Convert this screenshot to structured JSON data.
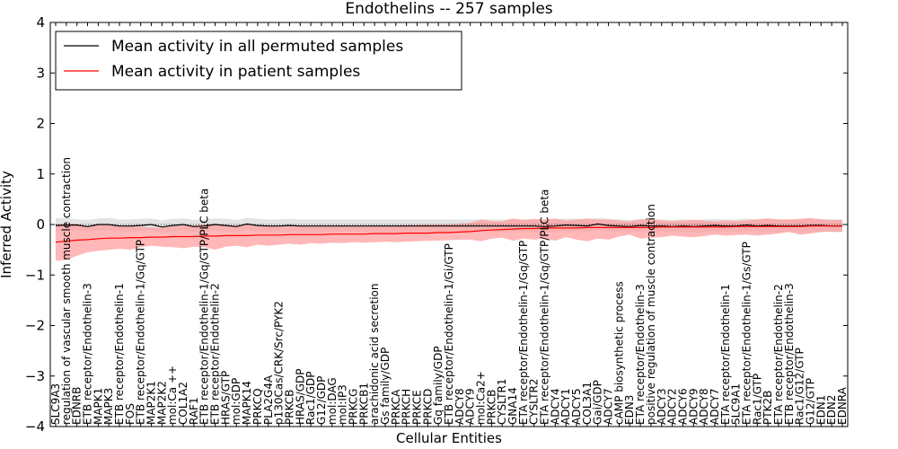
{
  "chart_data": {
    "type": "line",
    "title": "Endothelins -- 257 samples",
    "xlabel": "Cellular Entities",
    "ylabel": "Inferred Activity",
    "ylim": [
      -4,
      4
    ],
    "yticks": [
      -4,
      -3,
      -2,
      -1,
      0,
      1,
      2,
      3,
      4
    ],
    "yticklabels": [
      "−4",
      "−3",
      "−2",
      "−1",
      "0",
      "1",
      "2",
      "3",
      "4"
    ],
    "legend_position": "top-left",
    "categories": [
      "SLC9A3",
      "regulation of vascular smooth muscle contraction",
      "EDNRB",
      "ETB receptor/Endothelin-3",
      "MAPK1",
      "MAPK3",
      "ETB receptor/Endothelin-1",
      "FOS",
      "ETB receptor/Endothelin-1/Gq/GTP",
      "MAP2K1",
      "MAP2K2",
      "mol:Ca ++",
      "COL1A2",
      "RAF1",
      "ETB receptor/Endothelin-1/Gq/GTP/PLC beta",
      "ETB receptor/Endothelin-2",
      "HRAS/GTP",
      "mol:GDP",
      "MAPK14",
      "PRKCQ",
      "PLA2G4A",
      "p130Cas/CRK/Src/PYK2",
      "PRKCB",
      "HRAS/GDP",
      "Rac1/GDP",
      "G12/GDP",
      "mol:DAG",
      "mol:IP3",
      "PRKCG",
      "PRKCB1",
      "arachidonic acid secretion",
      "Gs family/GDP",
      "PRKCA",
      "PRKCH",
      "PRKCE",
      "PRKCD",
      "Gq family/GDP",
      "ETB receptor/Endothelin-1/Gi/GTP",
      "ADCY8",
      "ADCY9",
      "mol:Ca2+",
      "PRKCB",
      "CYSLTR1",
      "GNA14",
      "ETA receptor/Endothelin-1/Gq/GTP",
      "CYSLTR2",
      "ETA receptor/Endothelin-1/Gq/GTP/PLC beta",
      "ADCY4",
      "ADCY1",
      "ADCY5",
      "COL3A1",
      "Gai/GDP",
      "ADCY7",
      "cAMP biosynthetic process",
      "EDN3",
      "ETA receptor/Endothelin-3",
      "positive regulation of muscle contraction",
      "ADCY3",
      "ADCY2",
      "ADCY6",
      "ADCY9",
      "ADCY8",
      "ADCY7",
      "ETA receptor/Endothelin-1",
      "SLC9A1",
      "ETA receptor/Endothelin-1/Gs/GTP",
      "Rac1/GTP",
      "PTK2B",
      "ETA receptor/Endothelin-2",
      "ETB receptor/Endothelin-3",
      "Rac1/G12/GTP",
      "G12/GTP",
      "EDN1",
      "EDN2",
      "EDNRA"
    ],
    "series": [
      {
        "name": "Mean activity in all permuted samples",
        "color": "#000000",
        "band_color": "#d0d0d0",
        "values": [
          -0.02,
          -0.01,
          -0.01,
          -0.04,
          0.0,
          0.0,
          -0.03,
          -0.03,
          -0.02,
          0.0,
          -0.05,
          -0.02,
          0.0,
          -0.04,
          -0.03,
          0.0,
          -0.02,
          -0.04,
          0.01,
          -0.02,
          -0.03,
          -0.03,
          -0.02,
          -0.03,
          -0.03,
          -0.03,
          -0.03,
          -0.03,
          -0.03,
          -0.03,
          -0.03,
          -0.03,
          -0.03,
          -0.03,
          -0.03,
          -0.03,
          -0.03,
          -0.03,
          -0.03,
          -0.03,
          -0.03,
          -0.03,
          -0.03,
          -0.03,
          -0.03,
          -0.03,
          -0.04,
          -0.03,
          -0.01,
          -0.02,
          -0.03,
          0.01,
          -0.02,
          -0.03,
          -0.04,
          -0.02,
          -0.03,
          -0.03,
          -0.04,
          -0.03,
          -0.04,
          -0.03,
          -0.02,
          -0.03,
          -0.03,
          -0.01,
          -0.03,
          -0.02,
          -0.03,
          -0.03,
          -0.03,
          -0.02,
          -0.02,
          -0.03,
          -0.03
        ],
        "band_lower": [
          -0.14,
          -0.13,
          -0.12,
          -0.14,
          -0.12,
          -0.12,
          -0.15,
          -0.15,
          -0.14,
          -0.12,
          -0.17,
          -0.14,
          -0.12,
          -0.16,
          -0.15,
          -0.12,
          -0.14,
          -0.16,
          -0.11,
          -0.14,
          -0.15,
          -0.15,
          -0.14,
          -0.15,
          -0.15,
          -0.15,
          -0.15,
          -0.15,
          -0.15,
          -0.15,
          -0.15,
          -0.15,
          -0.15,
          -0.15,
          -0.15,
          -0.15,
          -0.15,
          -0.15,
          -0.15,
          -0.15,
          -0.15,
          -0.15,
          -0.15,
          -0.15,
          -0.15,
          -0.15,
          -0.16,
          -0.15,
          -0.13,
          -0.14,
          -0.15,
          -0.11,
          -0.14,
          -0.15,
          -0.16,
          -0.14,
          -0.15,
          -0.15,
          -0.16,
          -0.15,
          -0.16,
          -0.15,
          -0.14,
          -0.15,
          -0.15,
          -0.13,
          -0.15,
          -0.14,
          -0.15,
          -0.15,
          -0.15,
          -0.14,
          -0.14,
          -0.15,
          -0.15
        ],
        "band_upper": [
          0.13,
          0.13,
          0.1,
          0.09,
          0.12,
          0.13,
          0.1,
          0.1,
          0.11,
          0.12,
          0.08,
          0.11,
          0.12,
          0.09,
          0.1,
          0.12,
          0.11,
          0.09,
          0.13,
          0.11,
          0.1,
          0.1,
          0.11,
          0.1,
          0.1,
          0.1,
          0.1,
          0.1,
          0.1,
          0.1,
          0.1,
          0.1,
          0.1,
          0.1,
          0.1,
          0.1,
          0.1,
          0.1,
          0.1,
          0.1,
          0.1,
          0.1,
          0.1,
          0.1,
          0.1,
          0.1,
          0.09,
          0.1,
          0.12,
          0.11,
          0.1,
          0.13,
          0.11,
          0.1,
          0.09,
          0.11,
          0.1,
          0.1,
          0.09,
          0.1,
          0.09,
          0.1,
          0.11,
          0.1,
          0.1,
          0.12,
          0.1,
          0.11,
          0.1,
          0.1,
          0.1,
          0.11,
          0.11,
          0.1,
          0.1
        ]
      },
      {
        "name": "Mean activity in patient samples",
        "color": "#ff0000",
        "band_color": "#ff9999",
        "values": [
          -0.35,
          -0.33,
          -0.31,
          -0.3,
          -0.28,
          -0.27,
          -0.27,
          -0.26,
          -0.26,
          -0.25,
          -0.25,
          -0.24,
          -0.24,
          -0.24,
          -0.23,
          -0.23,
          -0.22,
          -0.22,
          -0.22,
          -0.21,
          -0.21,
          -0.21,
          -0.2,
          -0.2,
          -0.2,
          -0.2,
          -0.19,
          -0.19,
          -0.19,
          -0.19,
          -0.18,
          -0.18,
          -0.18,
          -0.17,
          -0.17,
          -0.17,
          -0.16,
          -0.16,
          -0.15,
          -0.14,
          -0.12,
          -0.11,
          -0.1,
          -0.09,
          -0.08,
          -0.08,
          -0.07,
          -0.07,
          -0.07,
          -0.07,
          -0.06,
          -0.06,
          -0.06,
          -0.06,
          -0.06,
          -0.06,
          -0.06,
          -0.05,
          -0.05,
          -0.05,
          -0.05,
          -0.05,
          -0.05,
          -0.05,
          -0.04,
          -0.04,
          -0.04,
          -0.04,
          -0.04,
          -0.04,
          -0.04,
          -0.03,
          -0.03,
          -0.03,
          -0.03
        ],
        "band_lower": [
          -0.72,
          -0.7,
          -0.62,
          -0.55,
          -0.52,
          -0.5,
          -0.48,
          -0.5,
          -0.45,
          -0.42,
          -0.44,
          -0.45,
          -0.47,
          -0.44,
          -0.45,
          -0.5,
          -0.44,
          -0.42,
          -0.45,
          -0.4,
          -0.42,
          -0.4,
          -0.38,
          -0.4,
          -0.37,
          -0.38,
          -0.36,
          -0.37,
          -0.35,
          -0.36,
          -0.35,
          -0.34,
          -0.35,
          -0.34,
          -0.33,
          -0.32,
          -0.32,
          -0.31,
          -0.3,
          -0.3,
          -0.33,
          -0.28,
          -0.26,
          -0.32,
          -0.28,
          -0.3,
          -0.28,
          -0.32,
          -0.25,
          -0.3,
          -0.33,
          -0.28,
          -0.3,
          -0.24,
          -0.2,
          -0.28,
          -0.26,
          -0.25,
          -0.22,
          -0.24,
          -0.25,
          -0.23,
          -0.2,
          -0.22,
          -0.21,
          -0.2,
          -0.22,
          -0.2,
          -0.18,
          -0.15,
          -0.2,
          -0.18,
          -0.15,
          -0.14,
          -0.15
        ],
        "band_upper": [
          0.0,
          0.02,
          0.01,
          -0.03,
          0.01,
          -0.01,
          -0.03,
          -0.02,
          -0.05,
          -0.06,
          -0.07,
          -0.04,
          -0.01,
          -0.02,
          0.0,
          0.02,
          -0.02,
          -0.02,
          0.0,
          -0.03,
          -0.02,
          -0.03,
          -0.04,
          -0.02,
          -0.04,
          -0.03,
          -0.03,
          -0.02,
          -0.03,
          -0.03,
          -0.02,
          -0.02,
          -0.02,
          -0.01,
          -0.01,
          0.0,
          0.0,
          0.0,
          0.02,
          0.03,
          0.1,
          0.07,
          0.06,
          0.12,
          0.09,
          0.11,
          0.1,
          0.12,
          0.08,
          0.1,
          0.12,
          0.1,
          0.1,
          0.08,
          0.06,
          0.1,
          0.1,
          0.08,
          0.07,
          0.08,
          0.09,
          0.08,
          0.06,
          0.08,
          0.07,
          0.08,
          0.1,
          0.12,
          0.1,
          0.1,
          0.11,
          0.13,
          0.1,
          0.09,
          0.09
        ]
      }
    ]
  }
}
